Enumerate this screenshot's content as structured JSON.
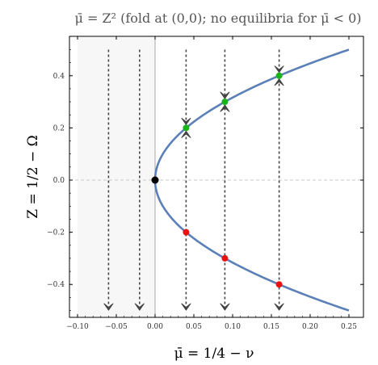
{
  "chart_data": {
    "type": "line",
    "title": "μ̄ = Z²  (fold at (0,0); no equilibria for μ̄ < 0)",
    "xlabel": "μ̄ = 1/4 − ν",
    "ylabel": "Z = 1/2 − Ω",
    "xlim": [
      -0.1,
      0.25
    ],
    "ylim": [
      -0.52,
      0.52
    ],
    "xticks": [
      -0.1,
      -0.05,
      0.0,
      0.05,
      0.1,
      0.15,
      0.2,
      0.25
    ],
    "xtick_labels": [
      "−0.10",
      "−0.05",
      "0.00",
      "0.05",
      "0.10",
      "0.15",
      "0.20",
      "0.25"
    ],
    "yticks": [
      0.4,
      0.2,
      0.0,
      -0.2,
      -0.4
    ],
    "ytick_labels": [
      "0.4",
      "0.2",
      "0.0",
      "−0.2",
      "−0.4"
    ],
    "grid": false,
    "shaded_region": {
      "x": [
        -0.1,
        0.0
      ],
      "color": "#f7f7f7"
    },
    "series": [
      {
        "color": "#5b80b8",
        "relation": "x = y^2",
        "y_range": [
          -0.5,
          0.5
        ]
      }
    ],
    "equilibria": {
      "fold": {
        "x": 0.0,
        "y": 0.0,
        "color": "#000000"
      },
      "stable": {
        "color": "#19b419",
        "points": [
          [
            0.04,
            0.2
          ],
          [
            0.09,
            0.3
          ],
          [
            0.16,
            0.4
          ]
        ]
      },
      "unstable": {
        "color": "#ee1111",
        "points": [
          [
            0.04,
            -0.2
          ],
          [
            0.09,
            -0.3
          ],
          [
            0.16,
            -0.4
          ]
        ]
      }
    },
    "flow_lines": {
      "color": "#444444",
      "x": [
        -0.06,
        -0.02,
        0.04,
        0.09,
        0.16
      ],
      "arrows": [
        {
          "x": -0.06,
          "y": -0.48,
          "direction": "down"
        },
        {
          "x": -0.02,
          "y": -0.48,
          "direction": "down"
        },
        {
          "x": 0.04,
          "y": 0.2,
          "direction": "converge"
        },
        {
          "x": 0.04,
          "y": -0.48,
          "direction": "down"
        },
        {
          "x": 0.09,
          "y": 0.3,
          "direction": "converge"
        },
        {
          "x": 0.09,
          "y": -0.48,
          "direction": "down"
        },
        {
          "x": 0.16,
          "y": 0.4,
          "direction": "converge"
        },
        {
          "x": 0.16,
          "y": -0.48,
          "direction": "down"
        }
      ]
    }
  }
}
